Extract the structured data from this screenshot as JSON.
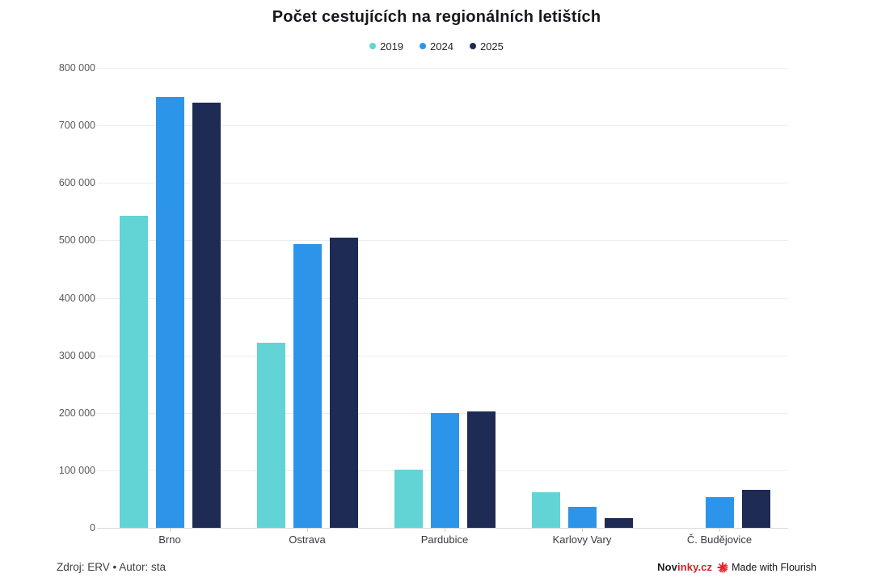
{
  "header": {
    "title": "Počet cestujících na regionálních letištích"
  },
  "chart_data": {
    "type": "bar",
    "title": "Počet cestujících na regionálních letištích",
    "categories": [
      "Brno",
      "Ostrava",
      "Pardubice",
      "Karlovy Vary",
      "Č. Budějovice"
    ],
    "series": [
      {
        "name": "2019",
        "color": "#62d4d5",
        "values": [
          543000,
          322000,
          101000,
          62000,
          null
        ]
      },
      {
        "name": "2024",
        "color": "#2d95e9",
        "values": [
          749000,
          493000,
          200000,
          37000,
          54000
        ]
      },
      {
        "name": "2025",
        "color": "#1e2b54",
        "values": [
          739000,
          505000,
          203000,
          17000,
          66000
        ]
      }
    ],
    "xlabel": "",
    "ylabel": "",
    "ylim": [
      0,
      800000
    ],
    "ytick_step": 100000,
    "yticks": [
      {
        "value": 0,
        "label": "0"
      },
      {
        "value": 100000,
        "label": "100 000"
      },
      {
        "value": 200000,
        "label": "200 000"
      },
      {
        "value": 300000,
        "label": "300 000"
      },
      {
        "value": 400000,
        "label": "400 000"
      },
      {
        "value": 500000,
        "label": "500 000"
      },
      {
        "value": 600000,
        "label": "600 000"
      },
      {
        "value": 700000,
        "label": "700 000"
      },
      {
        "value": 800000,
        "label": "800 000"
      }
    ],
    "grid": true,
    "legend_position": "top"
  },
  "footer": {
    "source": "Zdroj: ERV • Autor: sta",
    "brand": {
      "prefix": "Nov",
      "suffix": "inky.cz",
      "red": "#d42029"
    },
    "flourish": {
      "label": "Made with Flourish",
      "icon": "flourish-starburst-icon",
      "icon_color": "#e4252e"
    }
  }
}
